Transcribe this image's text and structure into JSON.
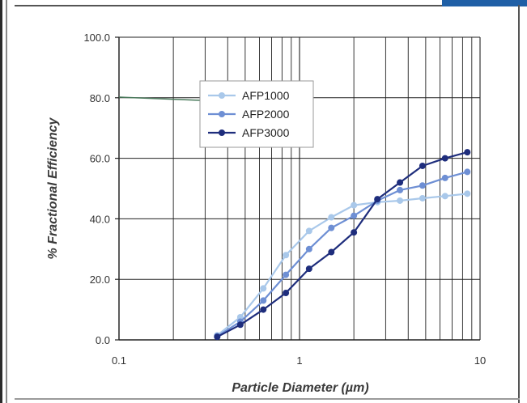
{
  "chart_data": {
    "type": "line",
    "xscale": "log",
    "xlim": [
      0.1,
      10
    ],
    "ylim": [
      0,
      100
    ],
    "grid": true,
    "legend_position": "top-center",
    "xlabel": "Particle Diameter (µm)",
    "ylabel": "% Fractional Efficiency",
    "x_ticks": [
      "0.1",
      "1",
      "10"
    ],
    "y_ticks": [
      "0.0",
      "20.0",
      "40.0",
      "60.0",
      "80.0",
      "100.0"
    ],
    "series": [
      {
        "name": "AFP1000",
        "color": "#a9c8ea",
        "x": [
          0.35,
          0.47,
          0.63,
          0.84,
          1.13,
          1.5,
          2.0,
          2.7,
          3.6,
          4.8,
          6.4,
          8.5
        ],
        "y": [
          1.5,
          7.5,
          17,
          28,
          36,
          40.5,
          44.5,
          45.5,
          46,
          46.8,
          47.5,
          48.3
        ]
      },
      {
        "name": "AFP2000",
        "color": "#6e8fd4",
        "x": [
          0.35,
          0.47,
          0.63,
          0.84,
          1.13,
          1.5,
          2.0,
          2.7,
          3.6,
          4.8,
          6.4,
          8.5
        ],
        "y": [
          1.2,
          6,
          13,
          21.5,
          30,
          37,
          41,
          46,
          49.5,
          51,
          53.5,
          55.5
        ]
      },
      {
        "name": "AFP3000",
        "color": "#1e2d7c",
        "x": [
          0.35,
          0.47,
          0.63,
          0.84,
          1.13,
          1.5,
          2.0,
          2.7,
          3.6,
          4.8,
          6.4,
          8.5
        ],
        "y": [
          1,
          5,
          10,
          15.5,
          23.5,
          29,
          35.5,
          46.5,
          52,
          57.5,
          60,
          62
        ]
      }
    ]
  }
}
